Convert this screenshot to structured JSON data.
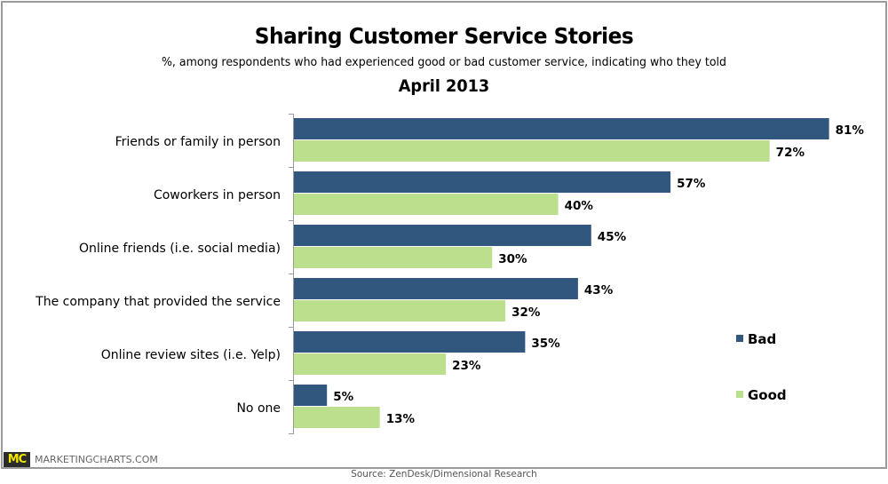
{
  "chart_data": {
    "type": "bar",
    "orientation": "horizontal",
    "title": "Sharing Customer Service Stories",
    "subtitle": "%, among respondents who had experienced good or bad customer service, indicating who they told",
    "period": "April 2013",
    "categories": [
      "Friends or family in person",
      "Coworkers in person",
      "Online friends (i.e. social media)",
      "The company that provided the service",
      "Online review sites (i.e. Yelp)",
      "No one"
    ],
    "series": [
      {
        "name": "Bad",
        "color": "#32577f",
        "values": [
          81,
          57,
          45,
          43,
          35,
          5
        ],
        "labels": [
          "81%",
          "57%",
          "45%",
          "43%",
          "35%",
          "5%"
        ]
      },
      {
        "name": "Good",
        "color": "#bcdf8e",
        "values": [
          72,
          40,
          30,
          32,
          23,
          13
        ],
        "labels": [
          "72%",
          "40%",
          "30%",
          "32%",
          "23%",
          "13%"
        ]
      }
    ],
    "xlim": [
      0,
      100
    ],
    "xlabel": "",
    "ylabel": "",
    "grid": false,
    "legend_position": "right"
  },
  "branding": {
    "logo_text": "MC",
    "site": "MARKETINGCHARTS.COM"
  },
  "source": "Source: ZenDesk/Dimensional Research"
}
